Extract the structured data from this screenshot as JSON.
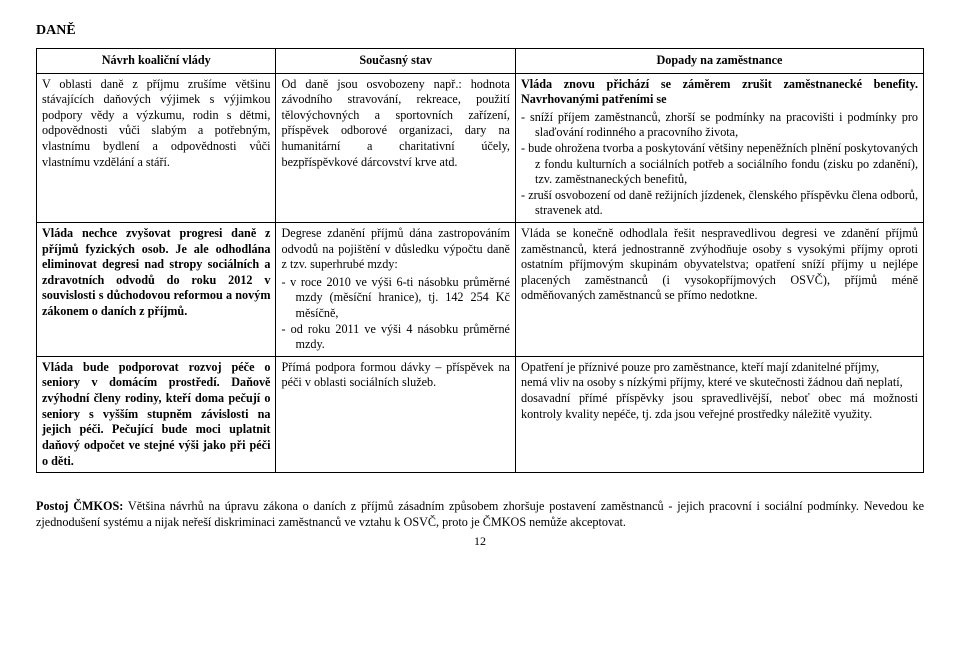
{
  "title": "DANĚ",
  "headers": {
    "c1": "Návrh koaliční vlády",
    "c2": "Současný stav",
    "c3": "Dopady na zaměstnance"
  },
  "row1": {
    "c1": "V oblasti daně z příjmu zrušíme většinu stávajících daňových výjimek s výjimkou podpory vědy a výzkumu, rodin s dětmi, odpovědnosti vůči slabým a potřebným, vlastnímu bydlení a odpovědnosti vůči vlastnímu vzdělání a stáří.",
    "c2": "Od daně jsou osvobozeny např.: hodnota závodního stravování, rekreace, použití tělovýchovných a sportovních zařízení, příspěvek odborové organizaci, dary na humanitární a charitativní účely, bezpříspěvkové dárcovství krve atd.",
    "c3_intro": "Vláda znovu přichází se záměrem zrušit zaměstnanecké benefity. Navrhovanými patřeními se",
    "c3_items": [
      "sníží příjem zaměstnanců, zhorší se podmínky na pracovišti i podmínky pro slaďování rodinného a pracovního života,",
      "bude ohrožena tvorba a poskytování většiny nepeněžních plnění poskytovaných z fondu kulturních a sociálních potřeb a sociálního fondu (zisku po zdanění), tzv. zaměstnaneckých benefitů,",
      "zruší osvobození od daně režijních jízdenek, členského příspěvku člena odborů, stravenek atd."
    ]
  },
  "row2": {
    "c1": "Vláda nechce zvyšovat progresi daně z příjmů fyzických osob. Je ale odhodlána eliminovat degresi nad stropy sociálních a zdravotních odvodů do roku 2012 v souvislosti s důchodovou reformou a novým zákonem o daních z příjmů.",
    "c2_intro": "Degrese zdanění příjmů dána zastropováním odvodů na pojištění v důsledku výpočtu daně z tzv. superhrubé mzdy:",
    "c2_items": [
      "v roce 2010 ve výši 6-ti násobku průměrné mzdy (měsíční hranice), tj. 142 254 Kč měsíčně,",
      "od roku 2011 ve výši 4 násobku průměrné mzdy."
    ],
    "c3": "Vláda se konečně odhodlala řešit nespravedlivou degresi ve zdanění příjmů zaměstnanců, která jednostranně zvýhodňuje osoby s vysokými příjmy oproti ostatním příjmovým skupinám obyvatelstva; opatření sníží příjmy u nejlépe placených zaměstnanců (i vysokopříjmových OSVČ), příjmů méně odměňovaných zaměstnanců se přímo nedotkne."
  },
  "row3": {
    "c1": "Vláda bude podporovat rozvoj péče o seniory v domácím prostředí. Daňově zvýhodní členy rodiny, kteří doma pečují o seniory s vyšším stupněm závislosti na jejich péči. Pečující bude moci uplatnit daňový odpočet ve stejné výši jako při péči o děti.",
    "c2": "Přímá podpora formou dávky – příspěvek na péči v oblasti sociálních služeb.",
    "c3_lines": [
      "Opatření je příznivé pouze pro zaměstnance, kteří mají zdanitelné příjmy,",
      "nemá vliv na osoby s nízkými příjmy, které ve skutečnosti žádnou daň neplatí,",
      "dosavadní přímé příspěvky jsou spravedlivější, neboť obec má možnosti kontroly kvality nepéče, tj. zda jsou veřejné prostředky náležitě využity."
    ]
  },
  "footer": {
    "lead": "Postoj ČMKOS:",
    "text": " Většina návrhů na úpravu zákona o daních z příjmů zásadním způsobem zhoršuje postavení zaměstnanců - jejich pracovní i sociální podmínky. Nevedou ke zjednodušení systému a nijak neřeší diskriminaci zaměstnanců ve vztahu k OSVČ, proto je ČMKOS nemůže akceptovat."
  },
  "pagenum": "12"
}
